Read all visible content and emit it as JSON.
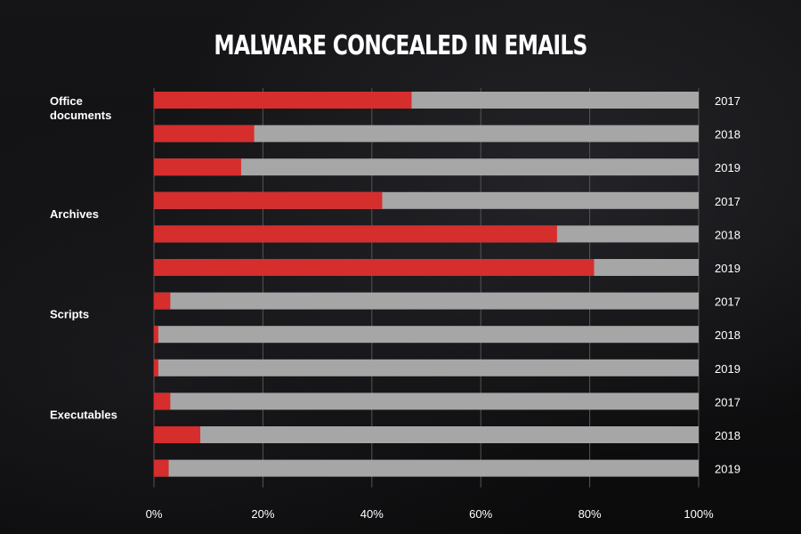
{
  "title": "MALWARE CONCEALED IN EMAILS",
  "colors": {
    "share": "#d62d2d",
    "rest": "#a6a6a6",
    "grid": "#555555"
  },
  "chart_data": {
    "type": "bar",
    "orientation": "horizontal",
    "stacked": true,
    "title": "MALWARE CONCEALED IN EMAILS",
    "xlim": [
      0,
      100
    ],
    "xticks": [
      "0%",
      "20%",
      "40%",
      "60%",
      "80%",
      "100%"
    ],
    "groups": [
      {
        "label": "Office documents",
        "label_lines": [
          "Office",
          "documents"
        ],
        "bars": [
          {
            "year": "2017",
            "value": 47.3
          },
          {
            "year": "2018",
            "value": 18.4
          },
          {
            "year": "2019",
            "value": 16.0
          }
        ]
      },
      {
        "label": "Archives",
        "label_lines": [
          "Archives"
        ],
        "bars": [
          {
            "year": "2017",
            "value": 41.9
          },
          {
            "year": "2018",
            "value": 74.0
          },
          {
            "year": "2019",
            "value": 80.8
          }
        ]
      },
      {
        "label": "Scripts",
        "label_lines": [
          "Scripts"
        ],
        "bars": [
          {
            "year": "2017",
            "value": 3.0
          },
          {
            "year": "2018",
            "value": 0.8
          },
          {
            "year": "2019",
            "value": 0.8
          }
        ]
      },
      {
        "label": "Executables",
        "label_lines": [
          "Executables"
        ],
        "bars": [
          {
            "year": "2017",
            "value": 3.0
          },
          {
            "year": "2018",
            "value": 8.5
          },
          {
            "year": "2019",
            "value": 2.7
          }
        ]
      }
    ]
  }
}
